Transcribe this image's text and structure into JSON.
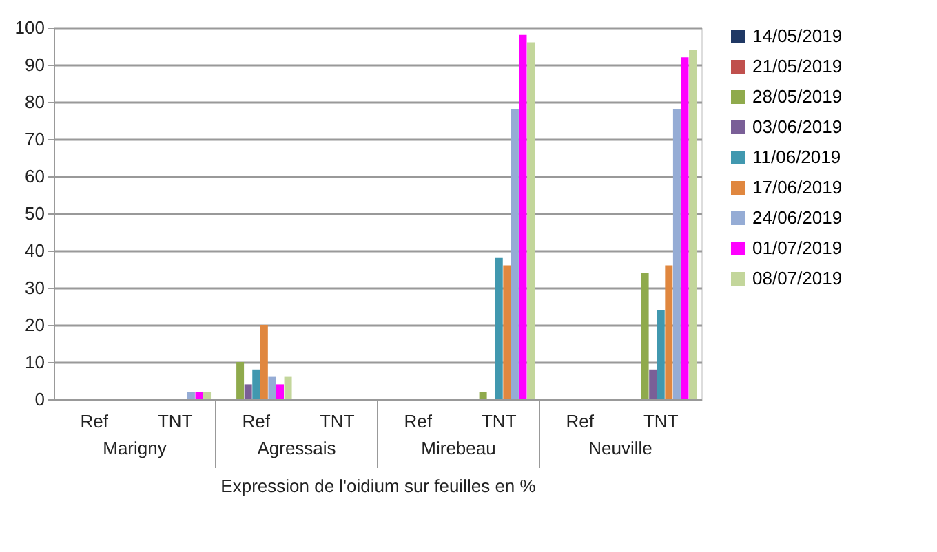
{
  "chart_data": {
    "type": "bar",
    "categories": [
      "Ref",
      "TNT",
      "Ref",
      "TNT",
      "Ref",
      "TNT",
      "Ref",
      "TNT"
    ],
    "annotations": [
      "Marigny",
      "Agressais",
      "Mirebeau",
      "Neuville"
    ],
    "xlabel": "Expression de l'oidium sur feuilles en %",
    "series": [
      {
        "name": "14/05/2019",
        "color": "#1f3864",
        "values": [
          0,
          0,
          0,
          0,
          0,
          0,
          0,
          0
        ]
      },
      {
        "name": "21/05/2019",
        "color": "#c0504d",
        "values": [
          0,
          0,
          0,
          0,
          0,
          0,
          0,
          0
        ]
      },
      {
        "name": "28/05/2019",
        "color": "#8faa4c",
        "values": [
          0,
          0,
          10,
          0,
          0,
          2,
          0,
          34
        ]
      },
      {
        "name": "03/06/2019",
        "color": "#7a5f97",
        "values": [
          0,
          0,
          4,
          0,
          0,
          0,
          0,
          8
        ]
      },
      {
        "name": "11/06/2019",
        "color": "#4198af",
        "values": [
          0,
          0,
          8,
          0,
          0,
          38,
          0,
          24
        ]
      },
      {
        "name": "17/06/2019",
        "color": "#e0873f",
        "values": [
          0,
          0,
          20,
          0,
          0,
          36,
          0,
          36
        ]
      },
      {
        "name": "24/06/2019",
        "color": "#95acd5",
        "values": [
          0,
          2,
          6,
          0,
          0,
          78,
          0,
          78
        ]
      },
      {
        "name": "01/07/2019",
        "color": "#ff00ff",
        "values": [
          0,
          2,
          4,
          0,
          0,
          98,
          0,
          92
        ]
      },
      {
        "name": "08/07/2019",
        "color": "#c3d69b",
        "values": [
          0,
          2,
          6,
          0,
          0,
          96,
          0,
          94
        ]
      }
    ],
    "ylim": [
      0,
      100
    ],
    "yticks": [
      0,
      10,
      20,
      30,
      40,
      50,
      60,
      70,
      80,
      90,
      100
    ],
    "grid": "y",
    "legend": "right"
  }
}
